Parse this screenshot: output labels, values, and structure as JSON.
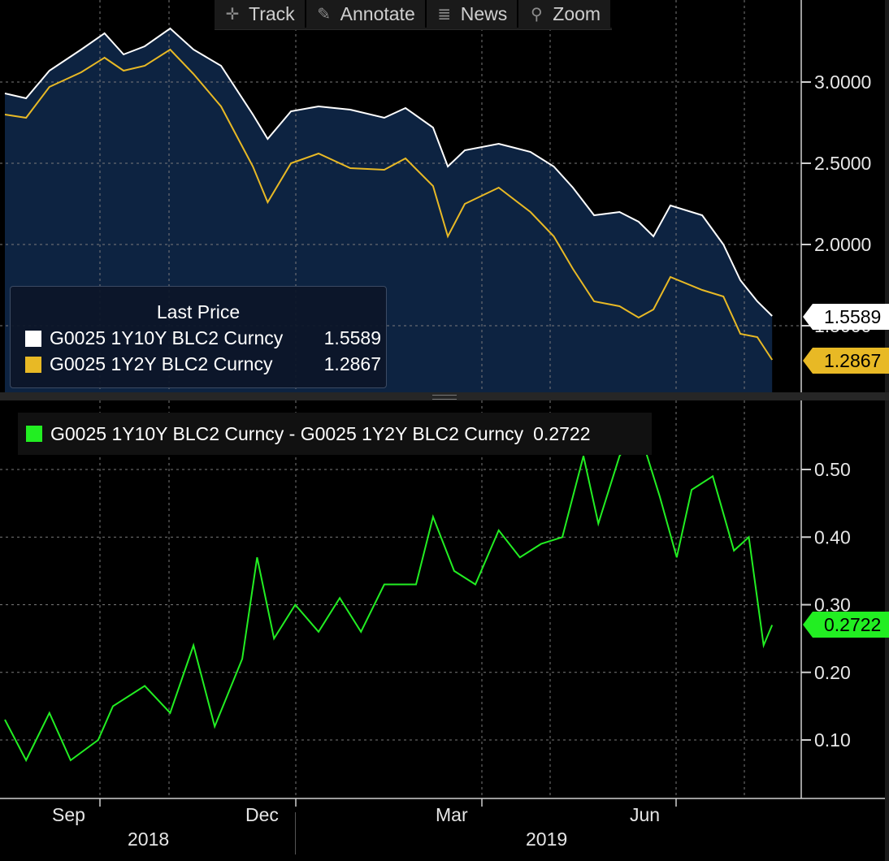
{
  "toolbar": {
    "items": [
      {
        "label": "Track",
        "icon": "crosshair-icon"
      },
      {
        "label": "Annotate",
        "icon": "pencil-icon"
      },
      {
        "label": "News",
        "icon": "news-icon"
      },
      {
        "label": "Zoom",
        "icon": "magnifier-icon"
      }
    ]
  },
  "top_panel": {
    "legend": {
      "title": "Last Price",
      "rows": [
        {
          "name": "G0025 1Y10Y BLC2 Curncy",
          "value": "1.5589",
          "color": "#ffffff"
        },
        {
          "name": "G0025 1Y2Y BLC2 Curncy",
          "value": "1.2867",
          "color": "#e8b925"
        }
      ]
    },
    "y_ticks": [
      "3.0000",
      "2.5000",
      "2.0000",
      "1.5000"
    ],
    "tag_white": "1.5589",
    "tag_gold": "1.2867",
    "fill_color": "#0d2341"
  },
  "bottom_panel": {
    "legend": {
      "name": "G0025 1Y10Y BLC2 Curncy - G0025 1Y2Y BLC2 Curncy",
      "value": "0.2722",
      "color": "#22ee22"
    },
    "y_ticks": [
      "0.50",
      "0.40",
      "0.30",
      "0.20",
      "0.10"
    ],
    "tag_green": "0.2722"
  },
  "x_axis": {
    "months": [
      "Sep",
      "Dec",
      "Mar",
      "Jun"
    ],
    "years": [
      "2018",
      "2019"
    ]
  },
  "chart_data": [
    {
      "type": "area",
      "y_ticks": [
        1.5,
        2.0,
        2.5,
        3.0
      ],
      "x_range": [
        "2018-08-15",
        "2019-08-15"
      ],
      "series": [
        {
          "name": "G0025 1Y10Y BLC2 Curncy",
          "color": "#ffffff",
          "last": 1.5589,
          "points": [
            [
              "2018-08-15",
              2.93
            ],
            [
              "2018-08-25",
              2.9
            ],
            [
              "2018-09-05",
              3.07
            ],
            [
              "2018-09-20",
              3.2
            ],
            [
              "2018-10-01",
              3.3
            ],
            [
              "2018-10-10",
              3.17
            ],
            [
              "2018-10-20",
              3.22
            ],
            [
              "2018-11-01",
              3.33
            ],
            [
              "2018-11-12",
              3.2
            ],
            [
              "2018-11-25",
              3.1
            ],
            [
              "2018-12-10",
              2.8
            ],
            [
              "2018-12-17",
              2.65
            ],
            [
              "2018-12-28",
              2.82
            ],
            [
              "2019-01-10",
              2.85
            ],
            [
              "2019-01-25",
              2.83
            ],
            [
              "2019-02-10",
              2.78
            ],
            [
              "2019-02-20",
              2.84
            ],
            [
              "2019-03-05",
              2.72
            ],
            [
              "2019-03-12",
              2.48
            ],
            [
              "2019-03-20",
              2.58
            ],
            [
              "2019-04-05",
              2.62
            ],
            [
              "2019-04-20",
              2.57
            ],
            [
              "2019-05-01",
              2.48
            ],
            [
              "2019-05-10",
              2.35
            ],
            [
              "2019-05-20",
              2.18
            ],
            [
              "2019-06-01",
              2.2
            ],
            [
              "2019-06-10",
              2.14
            ],
            [
              "2019-06-17",
              2.05
            ],
            [
              "2019-06-25",
              2.24
            ],
            [
              "2019-07-10",
              2.18
            ],
            [
              "2019-07-20",
              2.0
            ],
            [
              "2019-07-28",
              1.78
            ],
            [
              "2019-08-05",
              1.65
            ],
            [
              "2019-08-12",
              1.56
            ]
          ]
        },
        {
          "name": "G0025 1Y2Y BLC2 Curncy",
          "color": "#e8b925",
          "last": 1.2867,
          "points": [
            [
              "2018-08-15",
              2.8
            ],
            [
              "2018-08-25",
              2.78
            ],
            [
              "2018-09-05",
              2.97
            ],
            [
              "2018-09-20",
              3.06
            ],
            [
              "2018-10-01",
              3.15
            ],
            [
              "2018-10-10",
              3.07
            ],
            [
              "2018-10-20",
              3.1
            ],
            [
              "2018-11-01",
              3.2
            ],
            [
              "2018-11-12",
              3.05
            ],
            [
              "2018-11-25",
              2.85
            ],
            [
              "2018-12-10",
              2.48
            ],
            [
              "2018-12-17",
              2.26
            ],
            [
              "2018-12-28",
              2.5
            ],
            [
              "2019-01-10",
              2.56
            ],
            [
              "2019-01-25",
              2.47
            ],
            [
              "2019-02-10",
              2.46
            ],
            [
              "2019-02-20",
              2.53
            ],
            [
              "2019-03-05",
              2.36
            ],
            [
              "2019-03-12",
              2.05
            ],
            [
              "2019-03-20",
              2.25
            ],
            [
              "2019-04-05",
              2.35
            ],
            [
              "2019-04-20",
              2.2
            ],
            [
              "2019-05-01",
              2.05
            ],
            [
              "2019-05-10",
              1.85
            ],
            [
              "2019-05-20",
              1.65
            ],
            [
              "2019-06-01",
              1.62
            ],
            [
              "2019-06-10",
              1.55
            ],
            [
              "2019-06-17",
              1.6
            ],
            [
              "2019-06-25",
              1.8
            ],
            [
              "2019-07-10",
              1.72
            ],
            [
              "2019-07-20",
              1.68
            ],
            [
              "2019-07-28",
              1.45
            ],
            [
              "2019-08-05",
              1.43
            ],
            [
              "2019-08-12",
              1.29
            ]
          ]
        }
      ]
    },
    {
      "type": "line",
      "y_ticks": [
        0.1,
        0.2,
        0.3,
        0.4,
        0.5
      ],
      "x_range": [
        "2018-08-15",
        "2019-08-15"
      ],
      "series": [
        {
          "name": "G0025 1Y10Y BLC2 Curncy - G0025 1Y2Y BLC2 Curncy",
          "color": "#22ee22",
          "last": 0.2722,
          "points": [
            [
              "2018-08-15",
              0.13
            ],
            [
              "2018-08-25",
              0.07
            ],
            [
              "2018-09-05",
              0.14
            ],
            [
              "2018-09-15",
              0.07
            ],
            [
              "2018-09-28",
              0.1
            ],
            [
              "2018-10-05",
              0.15
            ],
            [
              "2018-10-20",
              0.18
            ],
            [
              "2018-11-01",
              0.14
            ],
            [
              "2018-11-12",
              0.24
            ],
            [
              "2018-11-22",
              0.12
            ],
            [
              "2018-12-05",
              0.22
            ],
            [
              "2018-12-12",
              0.37
            ],
            [
              "2018-12-20",
              0.25
            ],
            [
              "2018-12-30",
              0.3
            ],
            [
              "2019-01-10",
              0.26
            ],
            [
              "2019-01-20",
              0.31
            ],
            [
              "2019-01-30",
              0.26
            ],
            [
              "2019-02-10",
              0.33
            ],
            [
              "2019-02-25",
              0.33
            ],
            [
              "2019-03-05",
              0.43
            ],
            [
              "2019-03-15",
              0.35
            ],
            [
              "2019-03-25",
              0.33
            ],
            [
              "2019-04-05",
              0.41
            ],
            [
              "2019-04-15",
              0.37
            ],
            [
              "2019-04-25",
              0.39
            ],
            [
              "2019-05-05",
              0.4
            ],
            [
              "2019-05-15",
              0.52
            ],
            [
              "2019-05-22",
              0.42
            ],
            [
              "2019-06-01",
              0.52
            ],
            [
              "2019-06-10",
              0.56
            ],
            [
              "2019-06-20",
              0.46
            ],
            [
              "2019-06-28",
              0.37
            ],
            [
              "2019-07-05",
              0.47
            ],
            [
              "2019-07-15",
              0.49
            ],
            [
              "2019-07-25",
              0.38
            ],
            [
              "2019-08-01",
              0.4
            ],
            [
              "2019-08-08",
              0.24
            ],
            [
              "2019-08-12",
              0.27
            ]
          ]
        }
      ]
    }
  ]
}
